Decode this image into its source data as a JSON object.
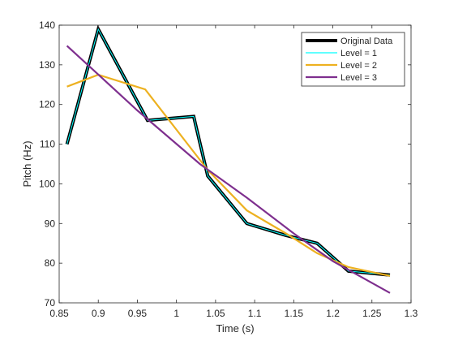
{
  "chart_data": {
    "type": "line",
    "xlabel": "Time (s)",
    "ylabel": "Pitch (Hz)",
    "xlim": [
      0.85,
      1.3
    ],
    "ylim": [
      70,
      140
    ],
    "xticks": [
      0.85,
      0.9,
      0.95,
      1,
      1.05,
      1.1,
      1.15,
      1.2,
      1.25,
      1.3
    ],
    "xtick_labels": [
      "0.85",
      "0.9",
      "0.95",
      "1",
      "1.05",
      "1.1",
      "1.15",
      "1.2",
      "1.25",
      "1.3"
    ],
    "yticks": [
      70,
      80,
      90,
      100,
      110,
      120,
      130,
      140
    ],
    "ytick_labels": [
      "70",
      "80",
      "90",
      "100",
      "110",
      "120",
      "130",
      "140"
    ],
    "grid": false,
    "legend_position": "top-right",
    "series": [
      {
        "name": "Original Data",
        "color": "#000000",
        "x": [
          0.86,
          0.9,
          0.963,
          1.022,
          1.04,
          1.09,
          1.14,
          1.18,
          1.22,
          1.273
        ],
        "y": [
          110,
          139,
          116,
          117,
          102,
          90,
          87,
          85,
          78,
          77
        ]
      },
      {
        "name": "Level = 1",
        "color": "#00ffff",
        "x": [
          0.86,
          0.9,
          0.963,
          1.022,
          1.04,
          1.09,
          1.14,
          1.18,
          1.22,
          1.273
        ],
        "y": [
          110,
          139,
          116,
          117,
          102,
          90,
          87,
          85,
          78,
          77
        ]
      },
      {
        "name": "Level = 2",
        "color": "#edb120",
        "x": [
          0.86,
          0.9,
          0.96,
          1.04,
          1.09,
          1.14,
          1.18,
          1.22,
          1.273
        ],
        "y": [
          124.5,
          127.5,
          123.8,
          103.5,
          93.3,
          87.5,
          82.5,
          79,
          76.8
        ]
      },
      {
        "name": "Level = 3",
        "color": "#7e2f8e",
        "x": [
          0.86,
          0.95,
          1.03,
          1.09,
          1.15,
          1.2,
          1.273
        ],
        "y": [
          134.8,
          118.5,
          105,
          96.5,
          87.5,
          80.5,
          72.5
        ]
      }
    ]
  }
}
